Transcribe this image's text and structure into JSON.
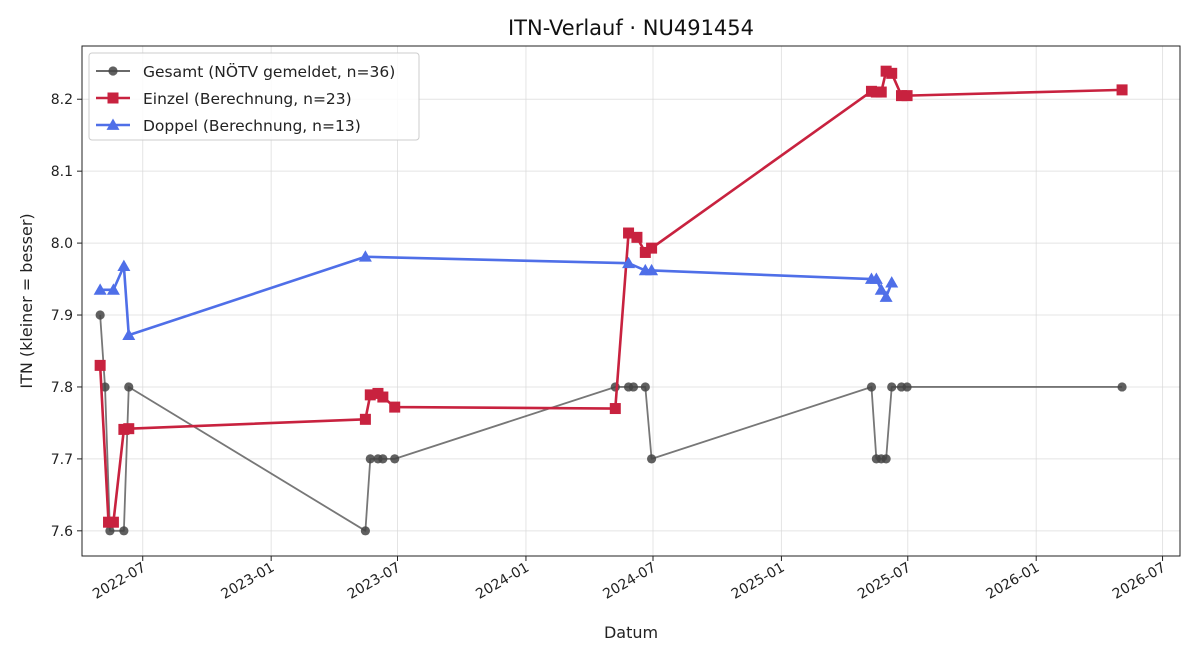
{
  "chart_data": {
    "type": "line",
    "title": "ITN-Verlauf · NU491454",
    "xlabel": "Datum",
    "ylabel": "ITN  (kleiner = besser)",
    "xlim": [
      "2022-04-05",
      "2026-07-26"
    ],
    "ylim": [
      7.565,
      8.274
    ],
    "grid": true,
    "legend_position": "top-left",
    "x_ticks": [
      "2022-07",
      "2023-01",
      "2023-07",
      "2024-01",
      "2024-07",
      "2025-01",
      "2025-07",
      "2026-01",
      "2026-07"
    ],
    "y_ticks": [
      "7.6",
      "7.7",
      "7.8",
      "7.9",
      "8.0",
      "8.1",
      "8.2"
    ],
    "series": [
      {
        "name": "Gesamt (NÖTV gemeldet, n=36)",
        "color": "#555555",
        "marker": "circle",
        "points": [
          [
            "2022-05-01",
            7.9
          ],
          [
            "2022-05-08",
            7.8
          ],
          [
            "2022-05-15",
            7.6
          ],
          [
            "2022-06-04",
            7.6
          ],
          [
            "2022-06-11",
            7.8
          ],
          [
            "2023-05-16",
            7.6
          ],
          [
            "2023-05-23",
            7.7
          ],
          [
            "2023-06-03",
            7.7
          ],
          [
            "2023-06-10",
            7.7
          ],
          [
            "2023-06-27",
            7.7
          ],
          [
            "2024-05-08",
            7.8
          ],
          [
            "2024-05-27",
            7.8
          ],
          [
            "2024-06-03",
            7.8
          ],
          [
            "2024-06-20",
            7.8
          ],
          [
            "2024-06-29",
            7.7
          ],
          [
            "2025-05-10",
            7.8
          ],
          [
            "2025-05-17",
            7.7
          ],
          [
            "2025-05-24",
            7.7
          ],
          [
            "2025-05-31",
            7.7
          ],
          [
            "2025-06-08",
            7.8
          ],
          [
            "2025-06-22",
            7.8
          ],
          [
            "2025-06-30",
            7.8
          ],
          [
            "2026-05-04",
            7.8
          ]
        ]
      },
      {
        "name": "Einzel (Berechnung, n=23)",
        "color": "#c8223f",
        "marker": "square",
        "points": [
          [
            "2022-05-01",
            7.83
          ],
          [
            "2022-05-13",
            7.612
          ],
          [
            "2022-05-20",
            7.612
          ],
          [
            "2022-06-04",
            7.741
          ],
          [
            "2022-06-11",
            7.742
          ],
          [
            "2023-05-16",
            7.755
          ],
          [
            "2023-05-23",
            7.789
          ],
          [
            "2023-06-03",
            7.791
          ],
          [
            "2023-06-10",
            7.786
          ],
          [
            "2023-06-27",
            7.772
          ],
          [
            "2024-05-08",
            7.77
          ],
          [
            "2024-05-27",
            8.014
          ],
          [
            "2024-06-08",
            8.008
          ],
          [
            "2024-06-20",
            7.987
          ],
          [
            "2024-06-29",
            7.993
          ],
          [
            "2025-05-10",
            8.211
          ],
          [
            "2025-05-17",
            8.21
          ],
          [
            "2025-05-24",
            8.21
          ],
          [
            "2025-05-31",
            8.239
          ],
          [
            "2025-06-08",
            8.236
          ],
          [
            "2025-06-22",
            8.205
          ],
          [
            "2025-06-30",
            8.205
          ],
          [
            "2026-05-04",
            8.213
          ]
        ]
      },
      {
        "name": "Doppel (Berechnung, n=13)",
        "color": "#4f6fe8",
        "marker": "triangle",
        "points": [
          [
            "2022-05-01",
            7.935
          ],
          [
            "2022-05-20",
            7.935
          ],
          [
            "2022-06-04",
            7.968
          ],
          [
            "2022-06-11",
            7.872
          ],
          [
            "2023-05-16",
            7.981
          ],
          [
            "2024-05-27",
            7.972
          ],
          [
            "2024-06-20",
            7.962
          ],
          [
            "2024-06-29",
            7.962
          ],
          [
            "2025-05-10",
            7.95
          ],
          [
            "2025-05-17",
            7.95
          ],
          [
            "2025-05-24",
            7.935
          ],
          [
            "2025-05-31",
            7.925
          ],
          [
            "2025-06-08",
            7.945
          ]
        ]
      }
    ]
  }
}
